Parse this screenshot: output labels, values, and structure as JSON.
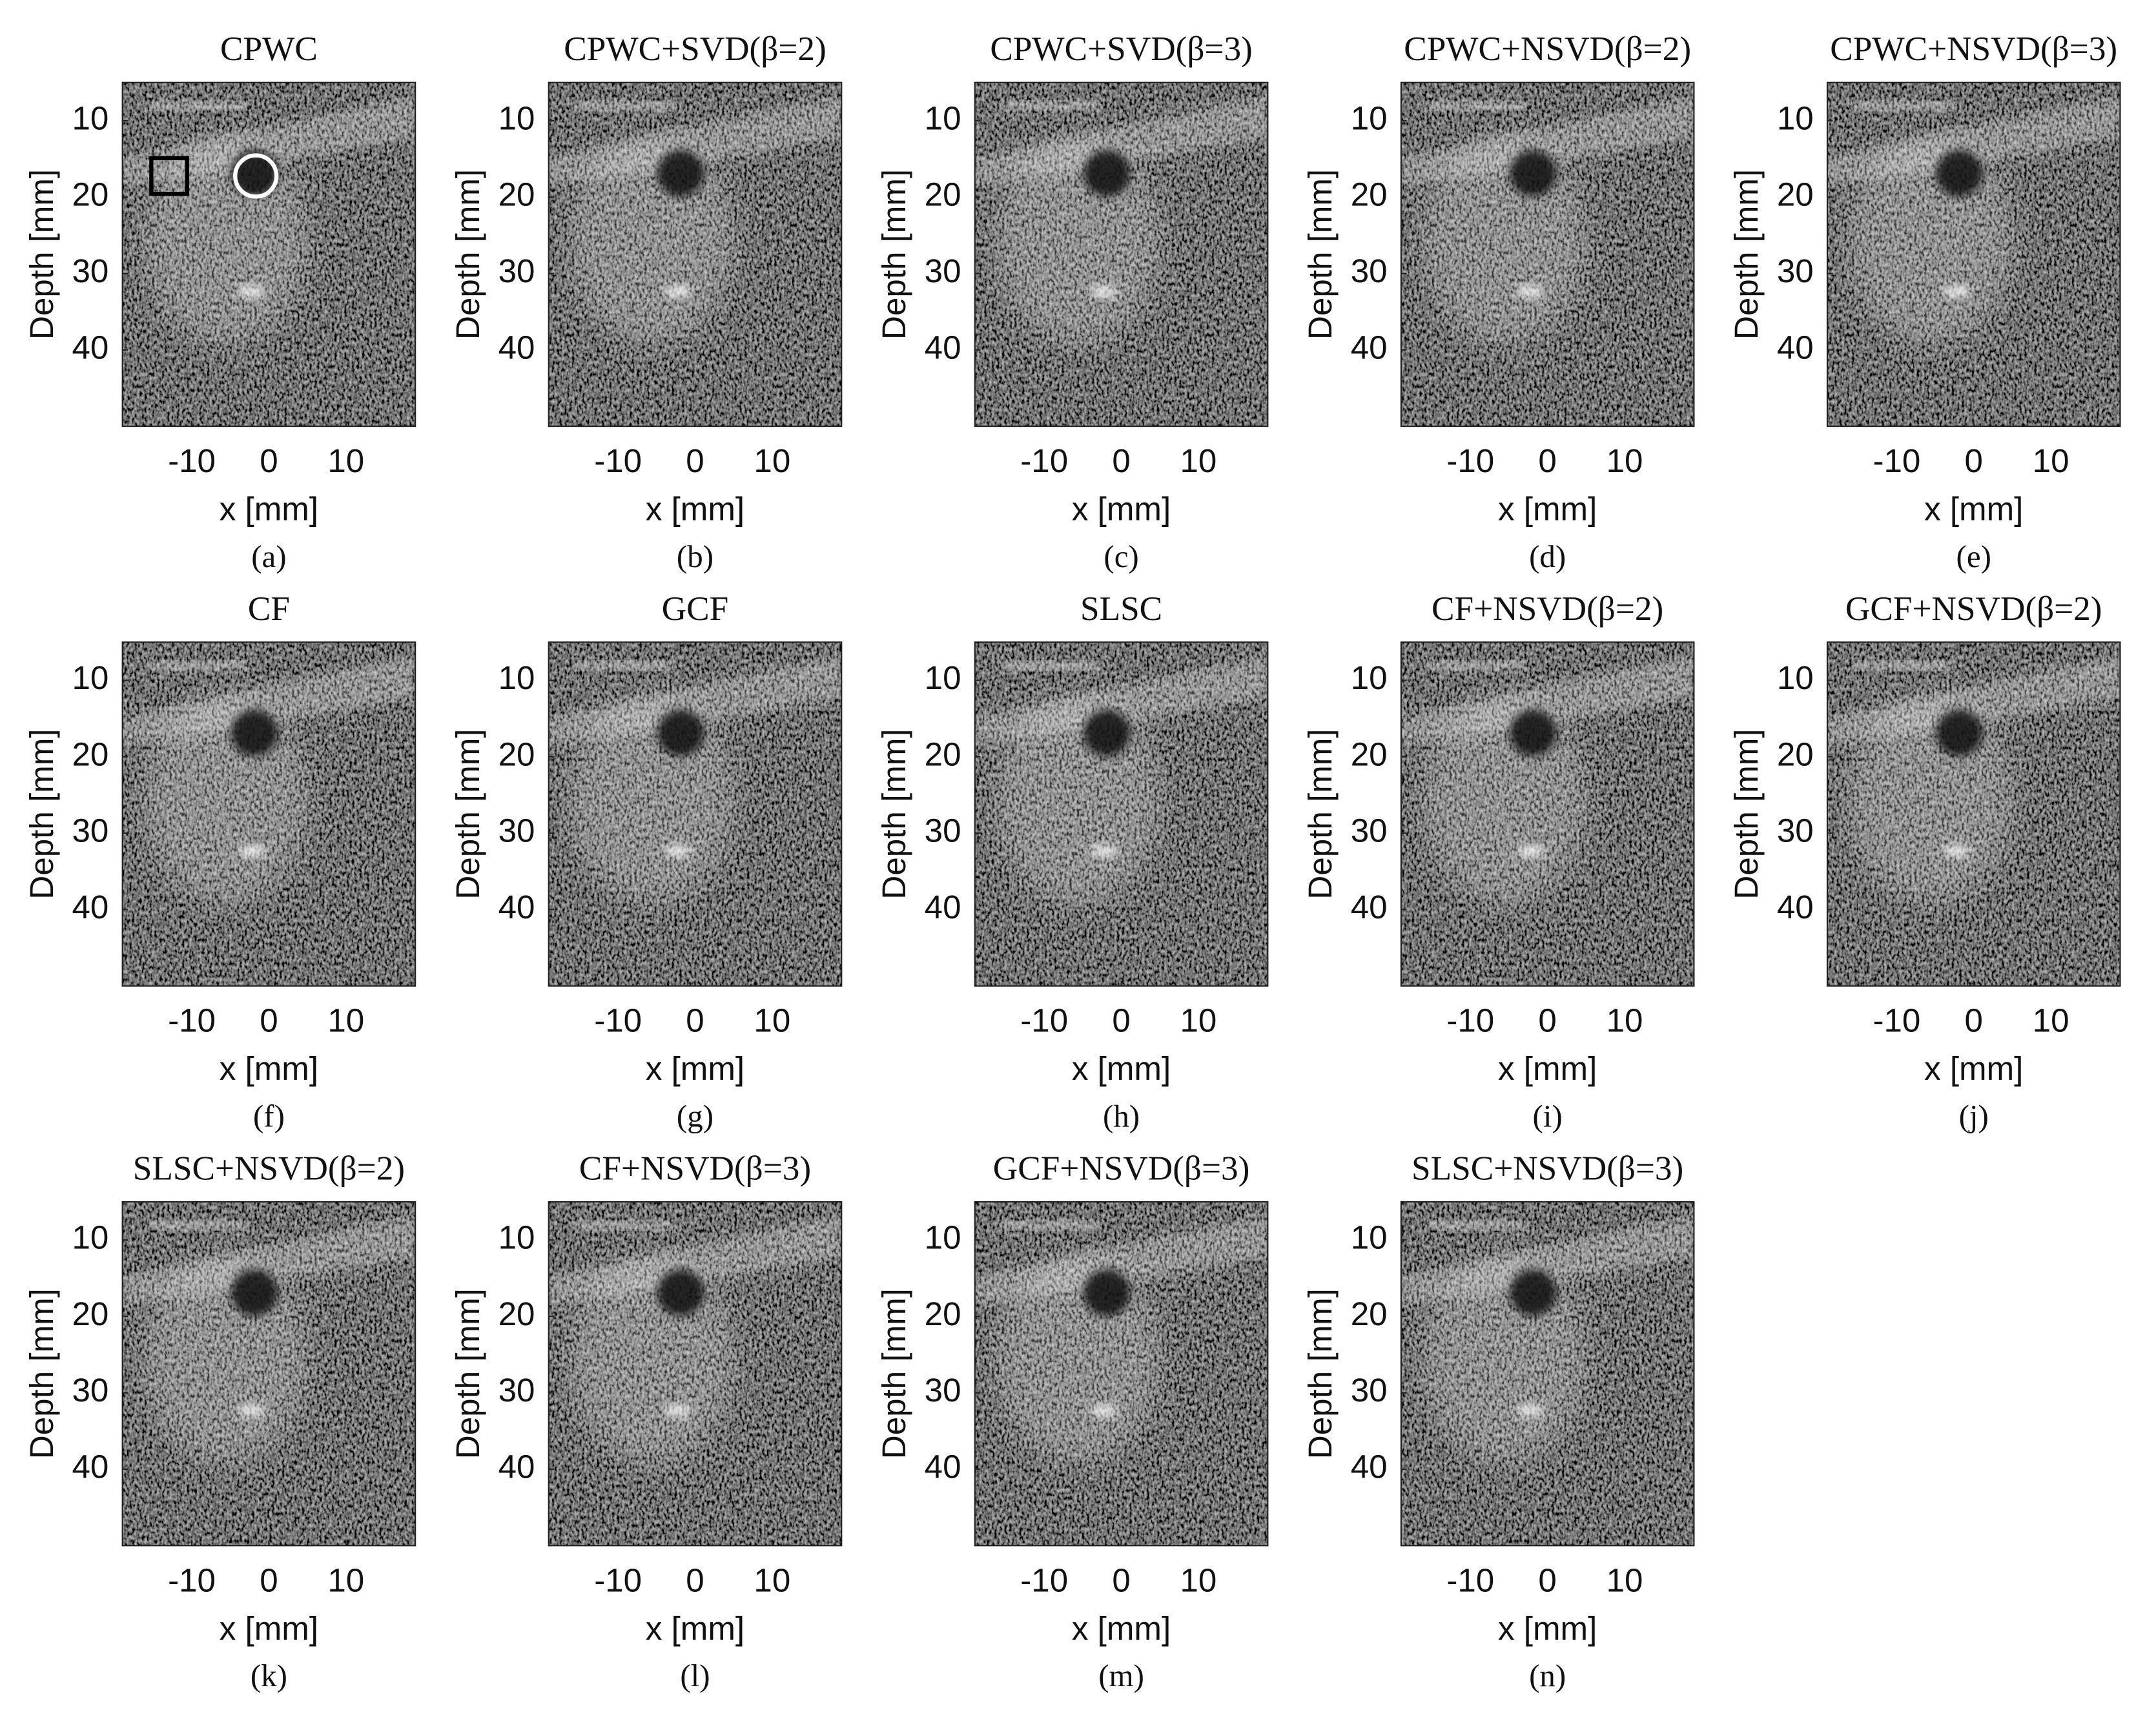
{
  "chart_data": [
    {
      "type": "image",
      "title": "CPWC",
      "xlabel": "x [mm]",
      "ylabel": "Depth [mm]",
      "caption": "(a)",
      "xlim": [
        -19,
        19
      ],
      "ylim": [
        5,
        50
      ],
      "yreverse": true,
      "xticks": [
        -10,
        0,
        10
      ],
      "yticks": [
        10,
        20,
        30,
        40
      ]
    },
    {
      "type": "image",
      "title": "CPWC+SVD(β=2)",
      "xlabel": "x [mm]",
      "ylabel": "Depth [mm]",
      "caption": "(b)",
      "xlim": [
        -19,
        19
      ],
      "ylim": [
        5,
        50
      ],
      "yreverse": true,
      "xticks": [
        -10,
        0,
        10
      ],
      "yticks": [
        10,
        20,
        30,
        40
      ]
    },
    {
      "type": "image",
      "title": "CPWC+SVD(β=3)",
      "xlabel": "x [mm]",
      "ylabel": "Depth [mm]",
      "caption": "(c)",
      "xlim": [
        -19,
        19
      ],
      "ylim": [
        5,
        50
      ],
      "yreverse": true,
      "xticks": [
        -10,
        0,
        10
      ],
      "yticks": [
        10,
        20,
        30,
        40
      ]
    },
    {
      "type": "image",
      "title": "CPWC+NSVD(β=2)",
      "xlabel": "x [mm]",
      "ylabel": "Depth [mm]",
      "caption": "(d)",
      "xlim": [
        -19,
        19
      ],
      "ylim": [
        5,
        50
      ],
      "yreverse": true,
      "xticks": [
        -10,
        0,
        10
      ],
      "yticks": [
        10,
        20,
        30,
        40
      ]
    },
    {
      "type": "image",
      "title": "CPWC+NSVD(β=3)",
      "xlabel": "x [mm]",
      "ylabel": "Depth [mm]",
      "caption": "(e)",
      "xlim": [
        -19,
        19
      ],
      "ylim": [
        5,
        50
      ],
      "yreverse": true,
      "xticks": [
        -10,
        0,
        10
      ],
      "yticks": [
        10,
        20,
        30,
        40
      ]
    },
    {
      "type": "image",
      "title": "CF",
      "xlabel": "x [mm]",
      "ylabel": "Depth [mm]",
      "caption": "(f)",
      "xlim": [
        -19,
        19
      ],
      "ylim": [
        5,
        50
      ],
      "yreverse": true,
      "xticks": [
        -10,
        0,
        10
      ],
      "yticks": [
        10,
        20,
        30,
        40
      ]
    },
    {
      "type": "image",
      "title": "GCF",
      "xlabel": "x [mm]",
      "ylabel": "Depth [mm]",
      "caption": "(g)",
      "xlim": [
        -19,
        19
      ],
      "ylim": [
        5,
        50
      ],
      "yreverse": true,
      "xticks": [
        -10,
        0,
        10
      ],
      "yticks": [
        10,
        20,
        30,
        40
      ]
    },
    {
      "type": "image",
      "title": "SLSC",
      "xlabel": "x [mm]",
      "ylabel": "Depth [mm]",
      "caption": "(h)",
      "xlim": [
        -19,
        19
      ],
      "ylim": [
        5,
        50
      ],
      "yreverse": true,
      "xticks": [
        -10,
        0,
        10
      ],
      "yticks": [
        10,
        20,
        30,
        40
      ]
    },
    {
      "type": "image",
      "title": "CF+NSVD(β=2)",
      "xlabel": "x [mm]",
      "ylabel": "Depth [mm]",
      "caption": "(i)",
      "xlim": [
        -19,
        19
      ],
      "ylim": [
        5,
        50
      ],
      "yreverse": true,
      "xticks": [
        -10,
        0,
        10
      ],
      "yticks": [
        10,
        20,
        30,
        40
      ]
    },
    {
      "type": "image",
      "title": "GCF+NSVD(β=2)",
      "xlabel": "x [mm]",
      "ylabel": "Depth [mm]",
      "caption": "(j)",
      "xlim": [
        -19,
        19
      ],
      "ylim": [
        5,
        50
      ],
      "yreverse": true,
      "xticks": [
        -10,
        0,
        10
      ],
      "yticks": [
        10,
        20,
        30,
        40
      ]
    },
    {
      "type": "image",
      "title": "SLSC+NSVD(β=2)",
      "xlabel": "x [mm]",
      "ylabel": "Depth [mm]",
      "caption": "(k)",
      "xlim": [
        -19,
        19
      ],
      "ylim": [
        5,
        50
      ],
      "yreverse": true,
      "xticks": [
        -10,
        0,
        10
      ],
      "yticks": [
        10,
        20,
        30,
        40
      ]
    },
    {
      "type": "image",
      "title": "CF+NSVD(β=3)",
      "xlabel": "x [mm]",
      "ylabel": "Depth [mm]",
      "caption": "(l)",
      "xlim": [
        -19,
        19
      ],
      "ylim": [
        5,
        50
      ],
      "yreverse": true,
      "xticks": [
        -10,
        0,
        10
      ],
      "yticks": [
        10,
        20,
        30,
        40
      ]
    },
    {
      "type": "image",
      "title": "GCF+NSVD(β=3)",
      "xlabel": "x [mm]",
      "ylabel": "Depth [mm]",
      "caption": "(m)",
      "xlim": [
        -19,
        19
      ],
      "ylim": [
        5,
        50
      ],
      "yreverse": true,
      "xticks": [
        -10,
        0,
        10
      ],
      "yticks": [
        10,
        20,
        30,
        40
      ]
    },
    {
      "type": "image",
      "title": "SLSC+NSVD(β=3)",
      "xlabel": "x [mm]",
      "ylabel": "Depth [mm]",
      "caption": "(n)",
      "xlim": [
        -19,
        19
      ],
      "ylim": [
        5,
        50
      ],
      "yreverse": true,
      "xticks": [
        -10,
        0,
        10
      ],
      "yticks": [
        10,
        20,
        30,
        40
      ]
    }
  ]
}
